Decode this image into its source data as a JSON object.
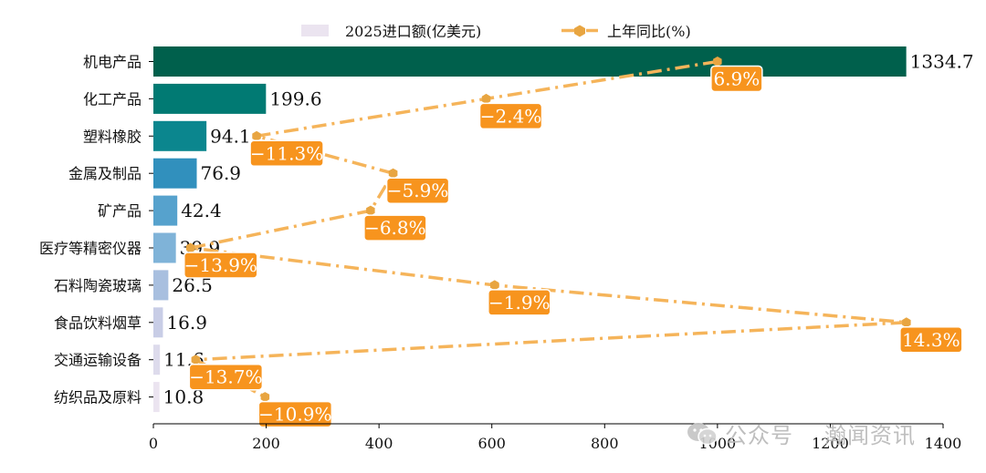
{
  "chart_data": {
    "type": "bar",
    "orientation": "horizontal",
    "categories": [
      "机电产品",
      "化工产品",
      "塑料橡胶",
      "金属及制品",
      "矿产品",
      "医疗等精密仪器",
      "石料陶瓷玻璃",
      "食品饮料烟草",
      "交通运输设备",
      "纺织品及原料"
    ],
    "series": [
      {
        "name": "2025进口额(亿美元)",
        "type": "bar",
        "values": [
          1334.7,
          199.6,
          94.1,
          76.9,
          42.4,
          39.9,
          26.5,
          16.9,
          11.6,
          10.8
        ],
        "value_labels": [
          "1334.7",
          "199.6",
          "94.1",
          "76.9",
          "42.4",
          "39.9",
          "26.5",
          "16.9",
          "11.6",
          "10.8"
        ],
        "colors": [
          "#00604c",
          "#017a73",
          "#0b868e",
          "#3190bd",
          "#56a2cd",
          "#7fb3d8",
          "#a8bfdf",
          "#c8cde6",
          "#dddbec",
          "#ebe4f0"
        ]
      },
      {
        "name": "上年同比(%)",
        "type": "line",
        "values": [
          6.9,
          -2.4,
          -11.3,
          -5.9,
          -6.8,
          -13.9,
          -1.9,
          14.3,
          -13.7,
          -10.9
        ],
        "value_labels": [
          "6.9%",
          "−2.4%",
          "−11.3%",
          "−5.9%",
          "−6.8%",
          "−13.9%",
          "−1.9%",
          "14.3%",
          "−13.7%",
          "−10.9%"
        ],
        "plot_x": [
          1000,
          590,
          183,
          425,
          385,
          66,
          605,
          1335,
          75,
          198
        ],
        "color": "#f5a02a"
      }
    ],
    "xlim": [
      0,
      1400
    ],
    "xticks": [
      "0",
      "200",
      "400",
      "600",
      "800",
      "1000",
      "1200",
      "1400"
    ],
    "xlabel": "",
    "ylabel": "",
    "legend": "top-center"
  },
  "watermark": {
    "account_label": "公众号",
    "account_name": "瀚闻资讯"
  }
}
